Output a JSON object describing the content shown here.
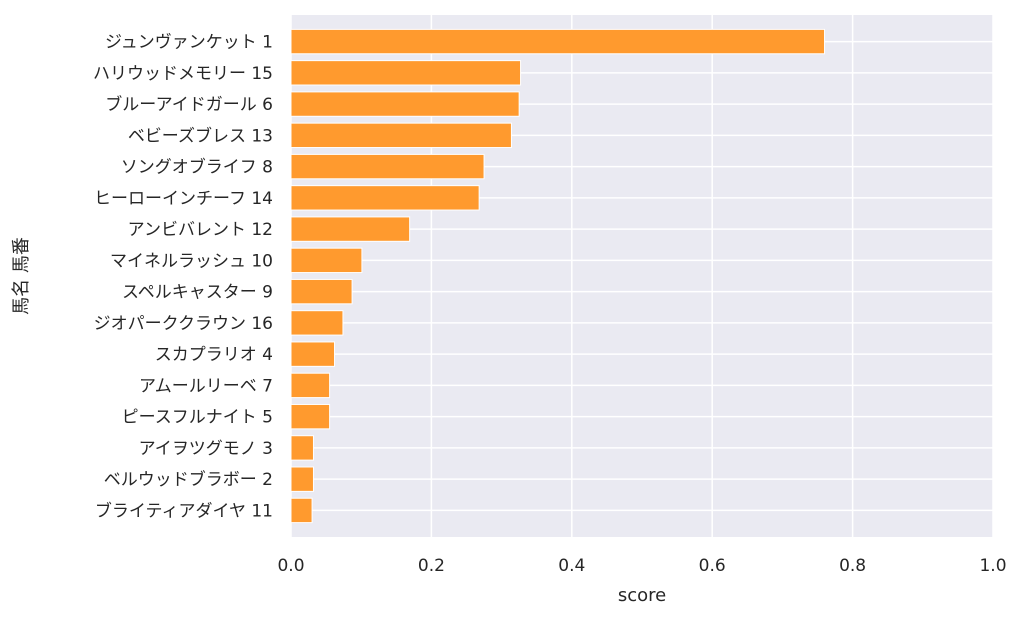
{
  "chart_data": {
    "type": "bar",
    "orientation": "horizontal",
    "categories": [
      "ジュンヴァンケット 1",
      "ハリウッドメモリー 15",
      "ブルーアイドガール 6",
      "ベビーズブレス 13",
      "ソングオブライフ 8",
      "ヒーローインチーフ 14",
      "アンビバレント 12",
      "マイネルラッシュ 10",
      "スペルキャスター 9",
      "ジオパーククラウン 16",
      "スカプラリオ 4",
      "アムールリーベ 7",
      "ピースフルナイト 5",
      "アイヲツグモノ 3",
      "ベルウッドブラボー 2",
      "ブライティアダイヤ 11"
    ],
    "values": [
      0.76,
      0.327,
      0.325,
      0.314,
      0.275,
      0.268,
      0.169,
      0.101,
      0.087,
      0.074,
      0.062,
      0.055,
      0.055,
      0.032,
      0.032,
      0.03
    ],
    "xlabel": "score",
    "ylabel": "馬名 馬番",
    "xlim": [
      0,
      1.0
    ],
    "xticks": [
      "0.0",
      "0.2",
      "0.4",
      "0.6",
      "0.8",
      "1.0"
    ],
    "grid": true,
    "colors": {
      "bar": "#ff9a2e",
      "bar_edge": "#ffffff",
      "plot_background": "#eaeaf2",
      "grid": "#ffffff",
      "text": "#262626"
    }
  }
}
